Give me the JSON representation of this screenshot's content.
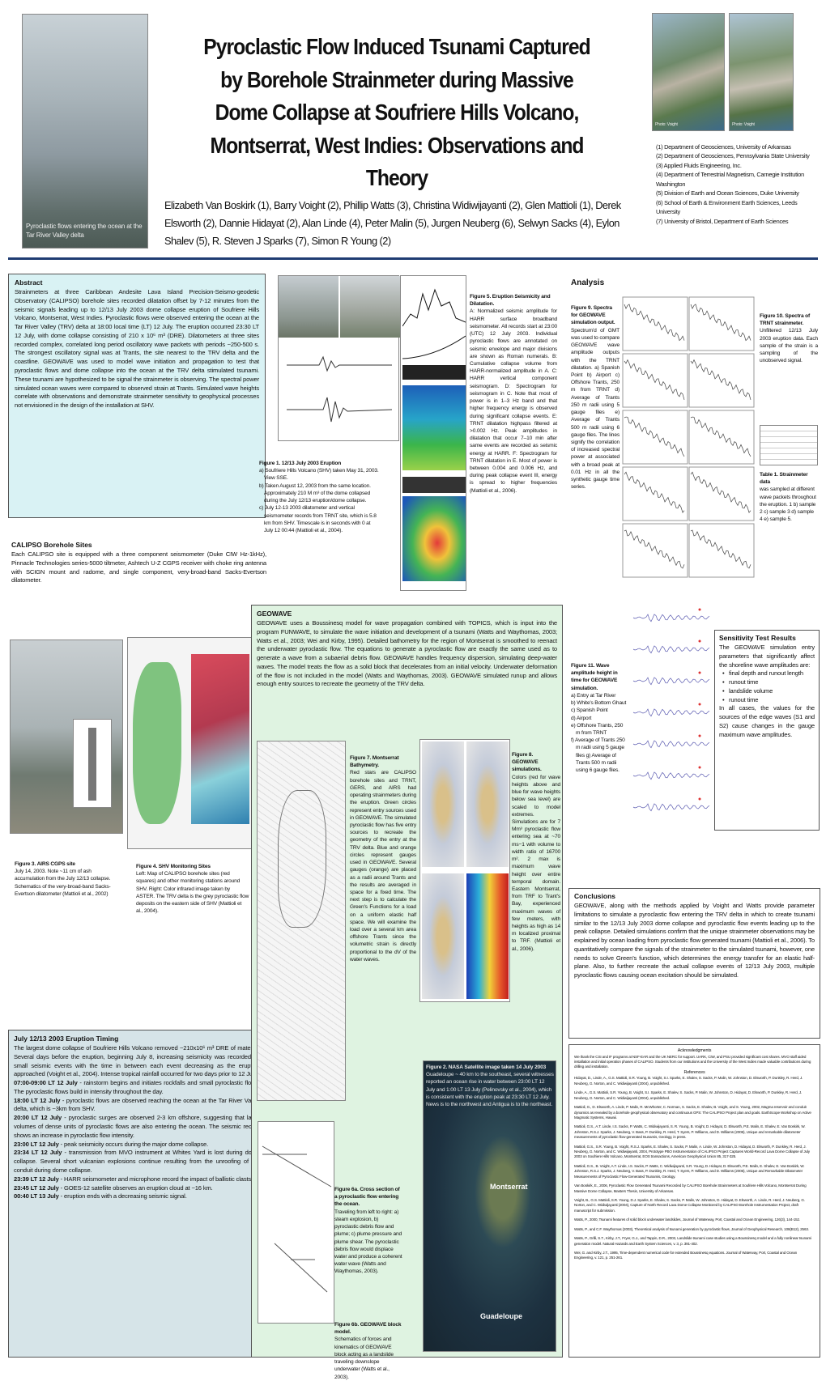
{
  "header": {
    "title": "Pyroclastic Flow Induced Tsunami Captured by Borehole Strainmeter during Massive Dome Collapse at Soufriere Hills Volcano, Montserrat, West Indies:  Observations and Theory",
    "authors": "Elizabeth Van Boskirk (1), Barry Voight (2), Phillip Watts (3), Christina Widiwijayanti (2), Glen Mattioli (1), Derek Elsworth (2), Dannie Hidayat (2), Alan Linde (4), Peter Malin (5), Jurgen Neuberg (6), Selwyn Sacks (4), Eylon Shalev (5), R. Steven J Sparks (7), Simon R Young (2)",
    "photo_caption": "Pyroclastic flows entering the ocean at the Tar River Valley delta",
    "photo_credit_1": "Photo: Voight",
    "photo_credit_2": "Photo: Voight",
    "affiliations": [
      "(1) Department of Geosciences, University of Arkansas",
      "(2) Department of Geosciences, Pennsylvania State University",
      "(3) Applied Fluids Engineering, Inc.",
      "(4) Department of Terrestrial Magnetism, Carnegie Institution Washington",
      "(5) Division of Earth and Ocean Sciences, Duke University",
      "(6) School of Earth & Environment Earth Sciences, Leeds University",
      "(7) University of Bristol, Department of Earth Sciences"
    ]
  },
  "abstract": {
    "heading": "Abstract",
    "text": "Strainmeters at three Caribbean Andesite Lava Island Precision-Seismo-geodetic Observatory (CALIPSO) borehole sites recorded dilatation offset by 7-12 minutes from the seismic signals leading up to 12/13 July 2003 dome collapse eruption of Soufriere Hills Volcano, Montserrat, West Indies. Pyroclastic flows were observed entering the ocean at the Tar River Valley (TRV) delta at 18:00 local time (LT) 12 July.  The eruption occurred 23:30 LT 12 July, with dome collapse consisting of 210 x 10⁶ m³ (DRE).  Dilatometers at three sites recorded complex, correlated long period oscillatory wave packets with periods ~250-500 s.  The strongest oscillatory signal was at Trants, the site nearest to the TRV delta and the coastline.  GEOWAVE was used to model wave initiation and propagation to test that pyroclastic flows and dome collapse into the ocean at the TRV delta stimulated tsunami. These tsunami are hypothesized to be signal the strainmeter is observing. The spectral power simulated ocean waves were compared to observed strain at Trants.  Simulated wave heights correlate with observations and demonstrate strainmeter sensitivity to geophysical processes not envisioned in the design of the installation at SHV."
  },
  "calipso": {
    "heading": "CALIPSO Borehole Sites",
    "text": "Each CALIPSO site is equipped with a three component seismometer (Duke CIW Hz-1kHz), Pinnacle Technologies series-5000 tiltmeter, Ashtech U-Z CGPS receiver with choke ring antenna with SCIGN mount and radome, and single component, very-broad-band Sacks-Evertson dilatometer."
  },
  "fig3": {
    "title": "Figure 3.  AIRS CGPS site",
    "text": "July 14, 2003.  Note ~11 cm of ash accumulation from the July 12/13 collapse. Schematics of the very-broad-band Sacks-Evertson dilatometer (Mattioli et al., 2002)"
  },
  "fig4": {
    "title": "Figure 4. SHV Monitoring Sites",
    "text": "Left:  Map of CALIPSO borehole sites (red squares) and other monitoring stations around SHV. Right:  Color infrared image taken by ASTER. The TRV delta is the grey pyroclastic flow deposits on the eastern side of SHV (Mattioli et al., 2004)."
  },
  "timing": {
    "heading": "July 12/13 2003 Eruption Timing",
    "intro": "The largest dome collapse of Soufriere Hills Volcano removed ~210x10⁶ m³ DRE of material. Several days before the eruption, beginning July 8, increasing seismicity was recorded by small seismic events with the time in between each event decreasing as the eruption approached (Voight et al., 2004).  Intense tropical rainfall occurred for two days prior to 12 July.",
    "items": [
      {
        "time": "07:00-09:00 LT 12 July",
        "text": " - rainstorm begins and initiates rockfalls and small pyroclastic flows.  The pyroclastic flows build in intensity throughout the day."
      },
      {
        "time": "18:00 LT 12 July",
        "text": " - pyroclastic flows are observed reaching the ocean at the Tar River Valley delta, which is ~3km from SHV."
      },
      {
        "time": "20:00 LT 12 July",
        "text": " - pyroclastic surges are observed 2-3 km offshore, suggesting that large volumes of dense units of pyroclastic flows are also entering the ocean.  The seismic record shows an increase in pyroclastic flow intensity."
      },
      {
        "time": "23:00 LT 12 July",
        "text": " - peak seismicity occurs during the major dome collapse."
      },
      {
        "time": "23:34 LT 12 July",
        "text": " - transmission from MVO instrument at Whites Yard is lost during dome collapse. Several short vulcanian explosions continue resulting from the unroofing of the conduit during dome collapse."
      },
      {
        "time": "23:39 LT 12 July",
        "text": " - HARR seismometer and microphone record the impact of ballistic clasts."
      },
      {
        "time": "23:45 LT 12 July",
        "text": " - GOES-12 satellite observes an eruption cloud at ~16 km."
      },
      {
        "time": "00:40 LT 13 July",
        "text": " - eruption ends with a decreasing seismic signal."
      }
    ]
  },
  "fig1": {
    "title": "Figure 1. 12/13 July 2003 Eruption",
    "items": [
      "a) Soufriere Hills Volcano (SHV) taken May 31, 2003.  View SSE.",
      "b) Taken August 12, 2003 from the same location. Approximately 210 M m³ of the dome collapsed during the July 12/13 eruption/dome collapse.",
      "c) July 12-13 2003 dilatometer and vertical seismometer records from TRNT site, which is 5.8 km from SHV. Timescale is in seconds with 0 at July 12 00:44 (Mattioli et al., 2004)."
    ]
  },
  "fig5": {
    "title": "Figure 5. Eruption Seismicity and Dilatation.",
    "text": "A: Normalized seismic amplitude for HARR surface broadband seismometer. All records start at 23:00 (UTC) 12 July 2003. Individual pyroclastic flows are annotated on seismic envelope and major divisions are shown as Roman numerals. B: Cumulative collapse volume from HARR-normalized amplitude in A. C: HARR vertical component seismogram. D: Spectrogram for seismogram in C. Note that most of power is in 1–3 Hz band and that higher frequency energy is observed during significant collapse events. E: TRNT dilatation highpass filtered at >0.002 Hz. Peak amplitudes in dilatation that occur 7–10 min after same events are recorded as seismic energy at HARR. F: Spectrogram for TRNT dilatation in E. Most of power is between 0.004 and 0.006 Hz, and during peak collapse event III, energy is spread to higher frequencies (Mattioli et al., 2006)."
  },
  "geowave": {
    "heading": "GEOWAVE",
    "text": "GEOWAVE uses a Boussinesq model for wave propagation combined with TOPICS, which is input into the program FUNWAVE, to simulate the wave initiation and development of a tsunami (Watts and Waythomas, 2003; Watts et al., 2003; Wei and Kirby, 1995).  Detailed bathometry for the region of Montserrat is smoothed to reenact the underwater pyroclastic flow. The equations to generate a pyroclastic flow are exactly the same used as to generate a wave from a subaerial debris flow. GEOWAVE handles frequency dispersion, simulating deep-water waves. The model treats the flow as a solid block that decelerates from an initial velocity.  Underwater deformation of the flow is not included in the model (Watts and Waythomas, 2003).  GEOWAVE simulated runup and allows enough entry sources to recreate the geometry of the TRV delta."
  },
  "fig7": {
    "title": "Figure 7. Montserrat Bathymetry.",
    "text": "Red stars are CALIPSO borehole sites and TRNT, GERS, and AIRS had operating strainmeters during the eruption.  Green circles represent entry sources used in GEOWAVE.  The simulated pyroclastic flow has five entry sources to recreate the geometry of the entry at the TRV delta. Blue and orange circles represent gauges used in GEOWAVE. Several gauges (orange) are placed as a radii around Trants and the results are averaged in space for a fixed time. The next step is to calculate the Green's Functions for a load on a uniform elastic half space.  We will examine the load over a several km area offshore Trants since the volumetric strain is directly proportional to the dV of the water waves."
  },
  "fig8": {
    "title": "Figure 8.  GEOWAVE simulations.",
    "text": "Colors (red for wave heights above and blue for wave heights below sea level) are scaled to model extremes. Simulations are for 7 Mm³ pyroclastic flow entering sea at ~70 ms−1 with volume to width ratio of 16700 m². 2 max is maximum wave height over entire temporal domain.  Eastern Montserrat, from TRF to Trant's Bay, experienced maximum waves of few meters, with heights as high as 14 m localized proximal to TRF. (Mattioli et al., 2006)."
  },
  "fig6a": {
    "title": "Figure 6a. Cross section of a pyroclastic flow entering the ocean.",
    "text": "Traveling from left to right:  a) steam explosion,  b) pyroclastic debris flow and plume; c) plume pressure and plume shear. The pyroclastic debris flow would displace water and produce a coherent water wave (Watts and Waythomas, 2003)."
  },
  "fig6b": {
    "title": "Figure 6b.  GEOWAVE block model.",
    "text": "Schematics of forces and kinematics of GEOWAVE block acting as a landslide traveling downslope underwater (Watts et al., 2003)."
  },
  "fig2": {
    "title": "Figure 2. NASA Satellite image taken 14 July 2003",
    "text": "Guadeloupe ~ 40 km to the southeast, several witnesses reported an ocean rise in water between 23:00 LT 12 July and 1:00 LT 13 July (Pelinovsky et al., 2004), which is consistent with the eruption peak at 23:30 LT 12 July. News is to the northwest and Antigua is to the northeast.",
    "label_1": "Montserrat",
    "label_2": "Guadeloupe"
  },
  "analysis": {
    "heading": "Analysis",
    "fig9_title": "Figure 9. Spectra for GEOWAVE simulation output.",
    "fig9_text": "Spectrum'd of GMT was used to compare GEOWAVE wave amplitude outputs with the TRNT dilatation. a) Spanish Point b) Airport c) Offshore Trants, 250 m from TRNT d) Average of Trants 250 m radii using 5 gauge files e) Average of Trants 500 m radii using 6 gauge files. The lines signify the correlation of increased spectral power at associated with a broad peak at 0.01 Hz in all the synthetic gauge time series.",
    "fig10_title": "Figure 10. Spectra of TRNT strainmeter.",
    "fig10_text": "Unfiltered 12/13 July 2003 eruption data.  Each sample of the strain is a sampling of the unobserved signal.",
    "table1_title": "Table 1.  Strainmeter data",
    "table1_text": "was sampled at different wave packets throughout the eruption. 1 b) sample 2 c) sample 3 d) sample 4 e) sample 5.",
    "fig11_title": "Figure 11. Wave amplitude height in time for GEOWAVE simulation.",
    "fig11_items": [
      "a) Entry at Tar River",
      "b) White's Bottom Ghaut",
      "c) Spanish Point",
      "d) Airport",
      "e) Offshore Trants, 250 m from TRNT",
      "f) Average of Trants 250 m radii using 5 gauge files g) Average of Trants 500 m radii using 6 gauge files."
    ]
  },
  "sensitivity": {
    "heading": "Sensitivity Test Results",
    "text": "The GEOWAVE simulation entry parameters that significantly affect the shoreline wave amplitudes are:",
    "bullets": [
      "final depth and runout length",
      "runout time",
      "landslide volume",
      "runout time"
    ],
    "text2": "In all cases, the values for the sources of the edge waves (S1 and S2) cause changes in the gauge maximum wave amplitudes."
  },
  "conclusions": {
    "heading": "Conclusions",
    "text": "GEOWAVE, along with the methods applied by Voight and Watts provide parameter limitations to simulate a pyroclastic flow entering the TRV delta in which to create tsunami similar to the 12/13 July 2003 dome collapse and pyroclastic flow events leading up to the peak collapse. Detailed simulations confirm that the unique strainmeter observations may be explained by ocean loading from pyroclastic flow generated tsunami (Mattioli et al., 2006).  To quantitatively compare the signals of the strainmeter to the simulated tsunami, however, one needs to solve Green's function, which determines the energy transfer for an elastic half-plane.  Also, to further recreate the actual collapse events of 12/13 July 2003, multiple pyroclastic flows causing ocean excitation should be simulated."
  },
  "acknowledgments": {
    "heading": "Acknowledgments",
    "text": "We thank the CSI and IF programs at NSF-EAR and the UK NERC for support. UARK, CIW, and PSU provided significant cost shares. MVO staff aided installation and initial operation phases of CALIPSO. Students from our institutions and the University of the West Indies made valuable contributions during drilling and installation.",
    "references_heading": "References",
    "references": [
      "Hidayat, D., Linde, A., G.S. Mattioli, S.R. Young, B. Voight, S.I. Sparks, E. Shalev, S. Sacks, P. Malin, W. Johnston, D. Elsworth, P. Dunkley, R. Herd, J. Neuberg, G. Norton, and C. Widiwijayanti (2004), unpublished.",
      "Linde, A., G.S. Mattioli, S.R. Young, B. Voight, S.I. Sparks, E. Shalev, S. Sacks, P. Malin, W. Johnston, D. Hidayat, D. Elsworth, P. Dunkley, R. Herd, J. Neuberg, G. Norton, and C. Widiwijayanti (2004), unpublished.",
      "Mattioli, G., D. Elsworth, A. Linde, P. Malin, R. McWhorter, C. Norman, S. Sacks, E. Shalev, B. Voight, and S. Young, 2002, Magma reservoir and conduit dynamics as revealed by a borehole geophysical observatory and continuous GPS: The CALIPSO Project plan and goals. EarthScope Workshop on Active Magmatic Systems, Hawaii.",
      "Mattioli, G.S., A.T. Linde, I.S. Sacks, P. Watts, C. Widiwijayanti, S. R. Young, B. Voight, D. Hidayat, D. Elsworth, P.E. Malin, E. Shalev, E. Van Boskirk, W. Johnston, R.S.J. Sparks, J. Neuberg, V. Bass, P. Dunkley, R. Herd, T. Syers, P. Williams, and D. Williams (2006), Unique and remarkable dilatometer measurements of pyroclastic flow-generated tsunamis, Geology, in press.",
      "Mattioli, G.S., S.R. Young, B. Voight, R.S.J. Sparks, E. Shalev, S. Sacks, P. Malin, A. Linde, W. Johnston, D. Hidayat, D. Elsworth, P. Dunkley, R. Herd, J. Neuberg, G. Norton, and C. Widiwijayanti, 2004, Prototype PBO Instrumentation of CALIPSO Project Captures World-Record Lava Dome Collapse of July 2003 on Soufriere Hills Volcano, Montserrat, EOS transactions, American Geophysical Union 85, 317-325.",
      "Mattioli, G.S., B. Voight, A.T. Linde, I.S. Sacks, P. Watts, C. Widiwijayanti, S.R. Young, D. Hidayat, D. Elsworth, P.E. Malin, E. Shalev, E. Van Boskirk, W. Johnston, R.S.J. Sparks, J. Neuberg, V. Bass, P. Dunkley, R. Herd, T. Syers, P. Williams, and D. Williams (2006), Unique and Remarkable Dilatometer Measurements of Pyroclastic Flow-Generated Tsunamis, Geology.",
      "Van Boskirk, E., 2006, Pyroclastic Flow Generated Tsunami Recorded by CALIPSO Borehole Strainmeters at Soufriere Hills Volcano, Montserrat During Massive Dome Collapse, Masters Thesis, University of Arkansas.",
      "Voight, B., G.S. Mattioli, S.R. Young, D.J. Sparks, E. Shalev, S. Sacks, P. Malin, W. Johnston, D. Hidayat, D. Elsworth, A. Linde, R. Herd, J. Neuberg, G. Norton, and C. Widiwijayanti (2004), Capture of North Record Lava Dome Collapse Monitored by CALIPSO Borehole Instrumentation Project, draft manuscript for submission.",
      "Watts, P., 2000, Tsunami features of solid block underwater landslides, Journal of Waterway, Port, Coastal and Ocean Engineering, 126(3), 144-152.",
      "Watts, P., and C.F. Waythomas (2003), Theoretical analysis of tsunami generation by pyroclastic flows, Journal of Geophysical Research, 108(B12), 2563.",
      "Watts, P., Grilli, S.T., Kirby, J.T., Fryer, G.J., and Tappin, D.R., 2003, Landslide tsunami case studies using a Boussinesq model and a fully nonlinear tsunami generation model. Natural Hazards and Earth System Sciences, v. 3, p. 391-402.",
      "Wei, G. and Kirby, J.T., 1995, Time-dependent numerical code for extended Boussinesq equations. Journal of Waterway, Port, Coastal and Ocean Engineering, v. 121, p. 251-261."
    ]
  }
}
